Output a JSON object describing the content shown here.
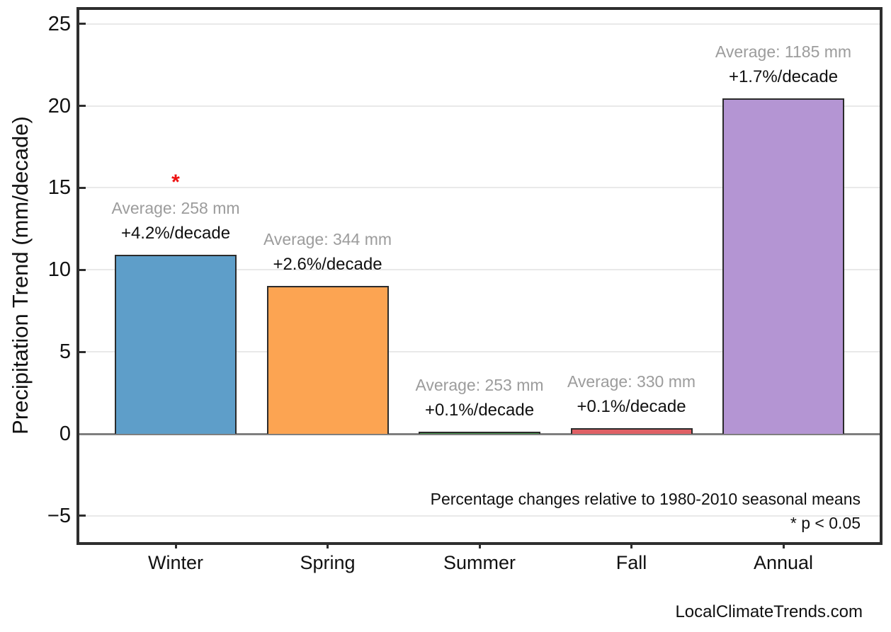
{
  "page": {
    "background": "#ffffff",
    "footer": "LocalClimateTrends.com"
  },
  "chart_data": {
    "type": "bar",
    "title": "",
    "xlabel": "",
    "ylabel": "Precipitation Trend (mm/decade)",
    "categories": [
      "Winter",
      "Spring",
      "Summer",
      "Fall",
      "Annual"
    ],
    "values": [
      10.9,
      9.0,
      0.15,
      0.35,
      20.45
    ],
    "bar_colors": [
      "#5E9EC9",
      "#FCA452",
      "#3E8E44",
      "#E06065",
      "#B495D3"
    ],
    "bar_edge_color": "#2b2b2b",
    "yticks": [
      25,
      20,
      15,
      10,
      5,
      0,
      -5
    ],
    "ylim": [
      -6.6,
      25.85
    ],
    "grid": true,
    "gridline_color": "#e9e9e9",
    "zero_line_color": "#7f7f7f",
    "average_label_color": "#9c9c9c",
    "annotations": [
      {
        "average_label": "Average: 258 mm",
        "trend_label": "+4.2%/decade",
        "significant": true
      },
      {
        "average_label": "Average: 344 mm",
        "trend_label": "+2.6%/decade",
        "significant": false
      },
      {
        "average_label": "Average: 253 mm",
        "trend_label": "+0.1%/decade",
        "significant": false
      },
      {
        "average_label": "Average: 330 mm",
        "trend_label": "+0.1%/decade",
        "significant": false
      },
      {
        "average_label": "Average: 1185 mm",
        "trend_label": "+1.7%/decade",
        "significant": false
      }
    ],
    "significance_marker": "*",
    "significance_color": "#ee1111",
    "note_line1": "Percentage changes relative to 1980-2010 seasonal means",
    "note_line2": "* p < 0.05",
    "legend": null
  }
}
